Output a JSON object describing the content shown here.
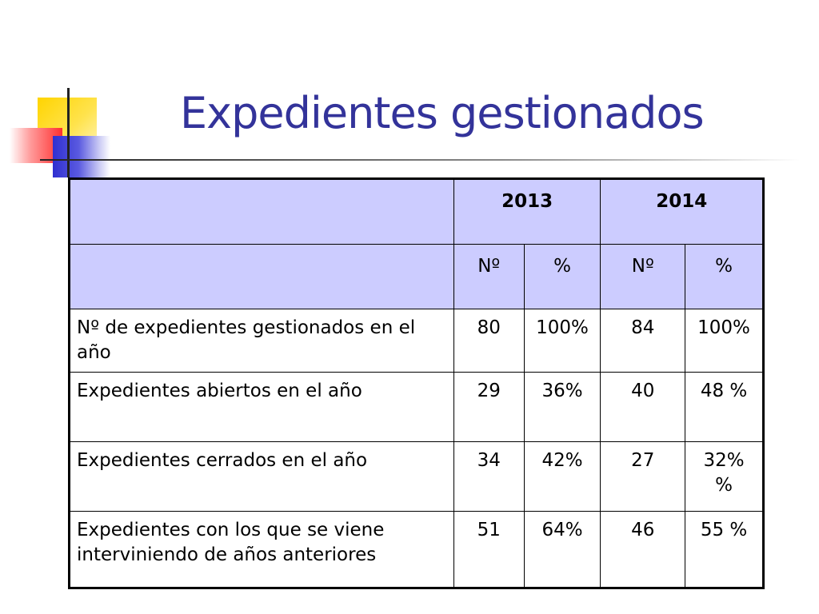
{
  "title": "Expedientes gestionados",
  "colors": {
    "title": "#33339a",
    "header_bg": "#ccccff"
  },
  "table": {
    "years": [
      "2013",
      "2014"
    ],
    "subheaders": [
      "Nº",
      "%",
      "Nº",
      "%"
    ],
    "rows": [
      {
        "label": "Nº de expedientes gestionados en el año",
        "n2013": "80",
        "p2013": "100%",
        "n2014": "84",
        "p2014": "100%"
      },
      {
        "label": "Expedientes abiertos en el año",
        "n2013": "29",
        "p2013": "36%",
        "n2014": "40",
        "p2014": "48 %"
      },
      {
        "label": "Expedientes cerrados en el año",
        "n2013": "34",
        "p2013": "42%",
        "n2014": "27",
        "p2014": "32% %"
      },
      {
        "label": "Expedientes con los que se viene interviniendo de años anteriores",
        "n2013": "51",
        "p2013": "64%",
        "n2014": "46",
        "p2014": "55 %"
      }
    ]
  }
}
